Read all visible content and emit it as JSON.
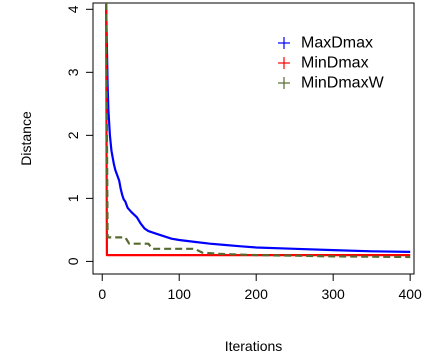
{
  "chart_data": {
    "type": "line",
    "title": "",
    "xlabel": "Iterations",
    "ylabel": "Distance",
    "xlim": [
      -12,
      405
    ],
    "ylim": [
      -0.2,
      4.1
    ],
    "x_ticks": [
      0,
      100,
      200,
      300,
      400
    ],
    "y_ticks": [
      0,
      1,
      2,
      3,
      4
    ],
    "grid": false,
    "legend_position": "top-right",
    "series": [
      {
        "name": "MaxDmax",
        "color": "#0000ff",
        "style": "solid",
        "points": [
          [
            5,
            4.1
          ],
          [
            6,
            3.4
          ],
          [
            7,
            2.8
          ],
          [
            8,
            2.4
          ],
          [
            10,
            2.0
          ],
          [
            12,
            1.75
          ],
          [
            15,
            1.55
          ],
          [
            17,
            1.45
          ],
          [
            20,
            1.35
          ],
          [
            22,
            1.28
          ],
          [
            24,
            1.15
          ],
          [
            26,
            1.05
          ],
          [
            28,
            0.98
          ],
          [
            30,
            0.95
          ],
          [
            33,
            0.85
          ],
          [
            38,
            0.78
          ],
          [
            45,
            0.7
          ],
          [
            50,
            0.6
          ],
          [
            55,
            0.52
          ],
          [
            60,
            0.48
          ],
          [
            70,
            0.44
          ],
          [
            80,
            0.4
          ],
          [
            90,
            0.36
          ],
          [
            100,
            0.34
          ],
          [
            120,
            0.31
          ],
          [
            140,
            0.28
          ],
          [
            160,
            0.26
          ],
          [
            180,
            0.24
          ],
          [
            200,
            0.22
          ],
          [
            250,
            0.2
          ],
          [
            300,
            0.18
          ],
          [
            350,
            0.16
          ],
          [
            400,
            0.15
          ]
        ]
      },
      {
        "name": "MinDmax",
        "color": "#ff0000",
        "style": "solid",
        "points": [
          [
            5,
            4.1
          ],
          [
            5.5,
            2.0
          ],
          [
            6,
            0.1
          ],
          [
            100,
            0.1
          ],
          [
            200,
            0.1
          ],
          [
            300,
            0.1
          ],
          [
            400,
            0.1
          ]
        ]
      },
      {
        "name": "MinDmaxW",
        "color": "#556b2f",
        "style": "dashed",
        "points": [
          [
            5,
            4.1
          ],
          [
            7,
            0.38
          ],
          [
            30,
            0.38
          ],
          [
            35,
            0.28
          ],
          [
            60,
            0.28
          ],
          [
            65,
            0.2
          ],
          [
            120,
            0.2
          ],
          [
            130,
            0.14
          ],
          [
            150,
            0.12
          ],
          [
            200,
            0.1
          ],
          [
            250,
            0.09
          ],
          [
            300,
            0.08
          ],
          [
            350,
            0.075
          ],
          [
            400,
            0.07
          ]
        ]
      }
    ]
  }
}
